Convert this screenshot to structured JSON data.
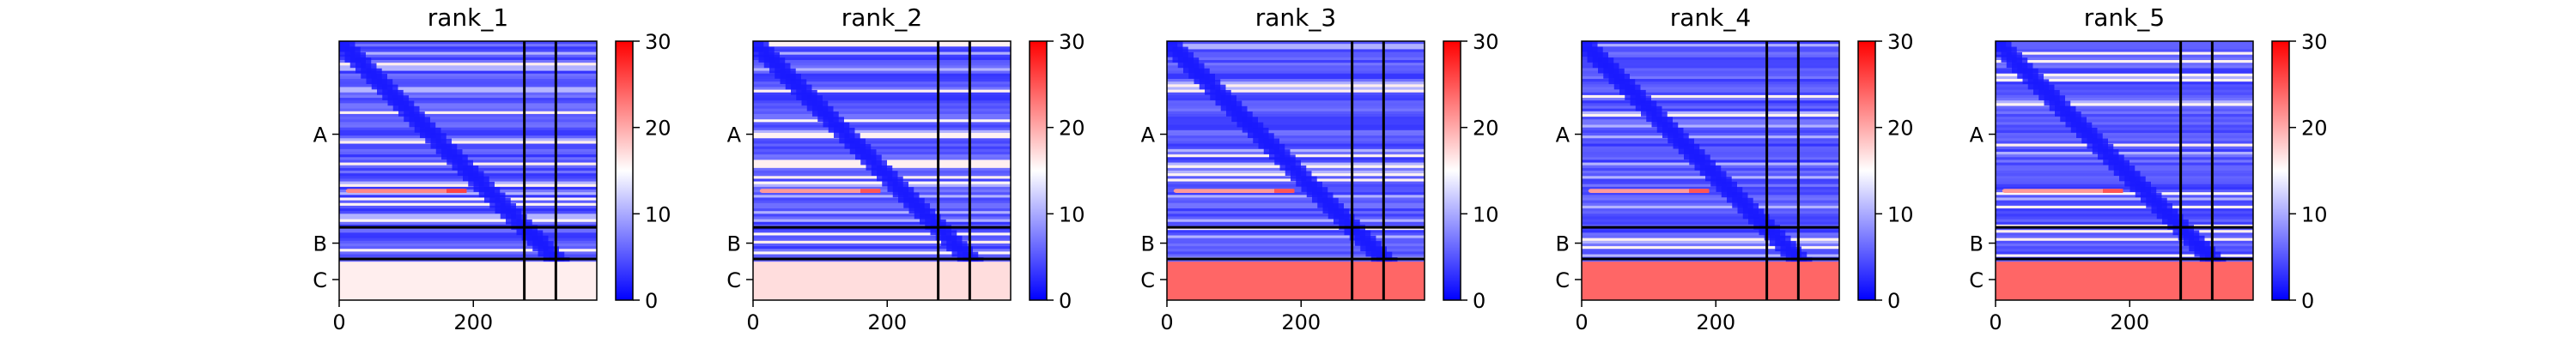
{
  "chart_data": [
    {
      "type": "heatmap",
      "title": "rank_1",
      "chain_labels": [
        "A",
        "B",
        "C"
      ],
      "chain_boundaries": [
        276,
        323
      ],
      "x_ticks": [
        0,
        200
      ],
      "xlim": [
        0,
        384
      ],
      "color_scale": {
        "min": 0,
        "max": 30,
        "ticks": [
          0,
          10,
          20,
          30
        ],
        "colors": [
          "#0000ff",
          "#ffffff",
          "#ff0000"
        ]
      },
      "hot_bands": [
        {
          "row": 221,
          "x_from": 10,
          "x_to": 190,
          "level": 22
        }
      ],
      "bottom_band_level": 16
    },
    {
      "type": "heatmap",
      "title": "rank_2",
      "chain_labels": [
        "A",
        "B",
        "C"
      ],
      "chain_boundaries": [
        276,
        323
      ],
      "x_ticks": [
        0,
        200
      ],
      "xlim": [
        0,
        384
      ],
      "color_scale": {
        "min": 0,
        "max": 30,
        "ticks": [
          0,
          10,
          20,
          30
        ],
        "colors": [
          "#0000ff",
          "#ffffff",
          "#ff0000"
        ]
      },
      "hot_bands": [
        {
          "row": 221,
          "x_from": 10,
          "x_to": 190,
          "level": 21
        }
      ],
      "bottom_band_level": 17
    },
    {
      "type": "heatmap",
      "title": "rank_3",
      "chain_labels": [
        "A",
        "B",
        "C"
      ],
      "chain_boundaries": [
        276,
        323
      ],
      "x_ticks": [
        0,
        200
      ],
      "xlim": [
        0,
        384
      ],
      "color_scale": {
        "min": 0,
        "max": 30,
        "ticks": [
          0,
          10,
          20,
          30
        ],
        "colors": [
          "#0000ff",
          "#ffffff",
          "#ff0000"
        ]
      },
      "hot_bands": [
        {
          "row": 221,
          "x_from": 10,
          "x_to": 190,
          "level": 21
        }
      ],
      "bottom_band_level": 24
    },
    {
      "type": "heatmap",
      "title": "rank_4",
      "chain_labels": [
        "A",
        "B",
        "C"
      ],
      "chain_boundaries": [
        276,
        323
      ],
      "x_ticks": [
        0,
        200
      ],
      "xlim": [
        0,
        384
      ],
      "color_scale": {
        "min": 0,
        "max": 30,
        "ticks": [
          0,
          10,
          20,
          30
        ],
        "colors": [
          "#0000ff",
          "#ffffff",
          "#ff0000"
        ]
      },
      "hot_bands": [
        {
          "row": 221,
          "x_from": 10,
          "x_to": 190,
          "level": 21
        }
      ],
      "bottom_band_level": 24
    },
    {
      "type": "heatmap",
      "title": "rank_5",
      "chain_labels": [
        "A",
        "B",
        "C"
      ],
      "chain_boundaries": [
        276,
        323
      ],
      "x_ticks": [
        0,
        200
      ],
      "xlim": [
        0,
        384
      ],
      "color_scale": {
        "min": 0,
        "max": 30,
        "ticks": [
          0,
          10,
          20,
          30
        ],
        "colors": [
          "#0000ff",
          "#ffffff",
          "#ff0000"
        ]
      },
      "hot_bands": [
        {
          "row": 221,
          "x_from": 10,
          "x_to": 190,
          "level": 21
        }
      ],
      "bottom_band_level": 24
    }
  ]
}
